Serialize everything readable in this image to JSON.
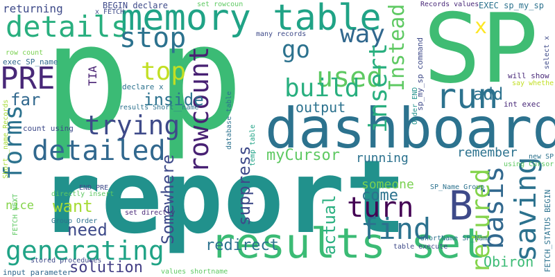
{
  "words": [
    {
      "text": "report",
      "color": "#21918c"
    },
    {
      "text": "p",
      "color": "#3bbb75"
    },
    {
      "text": "SP",
      "color": "#3fbc73"
    },
    {
      "text": "dashboard",
      "color": "#2c728e"
    },
    {
      "text": "results set",
      "color": "#3bbb75"
    },
    {
      "text": "memory table",
      "color": "#20a386"
    },
    {
      "text": "run",
      "color": "#2c728e"
    },
    {
      "text": "details",
      "color": "#29af7f"
    },
    {
      "text": "stop",
      "color": "#2c728e"
    },
    {
      "text": "way",
      "color": "#31688e"
    },
    {
      "text": "go",
      "color": "#2c728e"
    },
    {
      "text": "used",
      "color": "#5ec962"
    },
    {
      "text": "PRE",
      "color": "#482878"
    },
    {
      "text": "top",
      "color": "#c2df23"
    },
    {
      "text": "build",
      "color": "#29af7f"
    },
    {
      "text": "trying",
      "color": "#3e4a89"
    },
    {
      "text": "forms",
      "color": "#2c728e"
    },
    {
      "text": "rowcount",
      "color": "#482173"
    },
    {
      "text": "detailed",
      "color": "#31688e"
    },
    {
      "text": "generating",
      "color": "#20a386"
    },
    {
      "text": "insert",
      "color": "#29af7f"
    },
    {
      "text": "Instead",
      "color": "#5ec962"
    },
    {
      "text": "B",
      "color": "#3e4a89"
    },
    {
      "text": "find",
      "color": "#2c728e"
    },
    {
      "text": "turn",
      "color": "#440154"
    },
    {
      "text": "saving",
      "color": "#2c728e"
    },
    {
      "text": "basis",
      "color": "#31688e"
    },
    {
      "text": "retured",
      "color": "#84d44b"
    },
    {
      "text": "Somewhere",
      "color": "#3e4a89"
    },
    {
      "text": "suppress",
      "color": "#3e4a89"
    },
    {
      "text": "actual",
      "color": "#29af7f"
    },
    {
      "text": "need",
      "color": "#3e4a89"
    },
    {
      "text": "want",
      "color": "#a5db36"
    },
    {
      "text": "solution",
      "color": "#433e85"
    },
    {
      "text": "redirect",
      "color": "#2c728e"
    },
    {
      "text": "come",
      "color": "#2c728e"
    },
    {
      "text": "someone",
      "color": "#7ad151"
    },
    {
      "text": "myCursor",
      "color": "#5ec962"
    },
    {
      "text": "output",
      "color": "#2c728e"
    },
    {
      "text": "inside",
      "color": "#2c728e"
    },
    {
      "text": "add",
      "color": "#2c728e"
    },
    {
      "text": "running",
      "color": "#2c728e"
    },
    {
      "text": "remember",
      "color": "#2c728e"
    },
    {
      "text": "Obiron",
      "color": "#3bbb75"
    },
    {
      "text": "far",
      "color": "#31688e"
    },
    {
      "text": "nice",
      "color": "#84d44b"
    },
    {
      "text": "returning",
      "color": "#3e4a89"
    },
    {
      "text": "TIA",
      "color": "#482173"
    },
    {
      "text": "x",
      "color": "#fde725"
    },
    {
      "text": "EXEC sp_my_sp",
      "color": "#2c728e"
    },
    {
      "text": "sp_my_sp command",
      "color": "#3e4a89"
    },
    {
      "text": "int exec",
      "color": "#482878"
    },
    {
      "text": "will show",
      "color": "#482878"
    },
    {
      "text": "select x",
      "color": "#3e4a89"
    },
    {
      "text": "say whether",
      "color": "#c2df23"
    },
    {
      "text": "FETCH_STATUS BEGIN",
      "color": "#2c728e"
    },
    {
      "text": "new SP",
      "color": "#2c728e"
    },
    {
      "text": "using Cursor",
      "color": "#5ec962"
    },
    {
      "text": "SP_Name Group",
      "color": "#2c728e"
    },
    {
      "text": "ShortName SP_Name",
      "color": "#2c728e"
    },
    {
      "text": "table execute",
      "color": "#3e4a89"
    },
    {
      "text": "Records values",
      "color": "#482878"
    },
    {
      "text": "Order END",
      "color": "#21918c"
    },
    {
      "text": "set rowcoun",
      "color": "#5ec962"
    },
    {
      "text": "BEGIN declare",
      "color": "#3e4a89"
    },
    {
      "text": "x FETCH",
      "color": "#3e4a89"
    },
    {
      "text": "declare x",
      "color": "#2c728e"
    },
    {
      "text": "results Short__name",
      "color": "#2c728e"
    },
    {
      "text": "many records",
      "color": "#3e4a89"
    },
    {
      "text": "database table",
      "color": "#2c728e"
    },
    {
      "text": "temp table",
      "color": "#20a386"
    },
    {
      "text": "row count",
      "color": "#7ad151"
    },
    {
      "text": "exec SP_name",
      "color": "#31688e"
    },
    {
      "text": "count using",
      "color": "#3e4a89"
    },
    {
      "text": "Short__name Records",
      "color": "#a5db36"
    },
    {
      "text": "END PRE",
      "color": "#3e4a89"
    },
    {
      "text": "directly insert",
      "color": "#5ec962"
    },
    {
      "text": "Group Order",
      "color": "#2c728e"
    },
    {
      "text": "set directly",
      "color": "#482878"
    },
    {
      "text": "FETCH NEXT",
      "color": "#5ec962"
    },
    {
      "text": "stored procedures",
      "color": "#3e4a89"
    },
    {
      "text": "input parameter",
      "color": "#31688e"
    },
    {
      "text": "values shortname",
      "color": "#5ec962"
    }
  ]
}
